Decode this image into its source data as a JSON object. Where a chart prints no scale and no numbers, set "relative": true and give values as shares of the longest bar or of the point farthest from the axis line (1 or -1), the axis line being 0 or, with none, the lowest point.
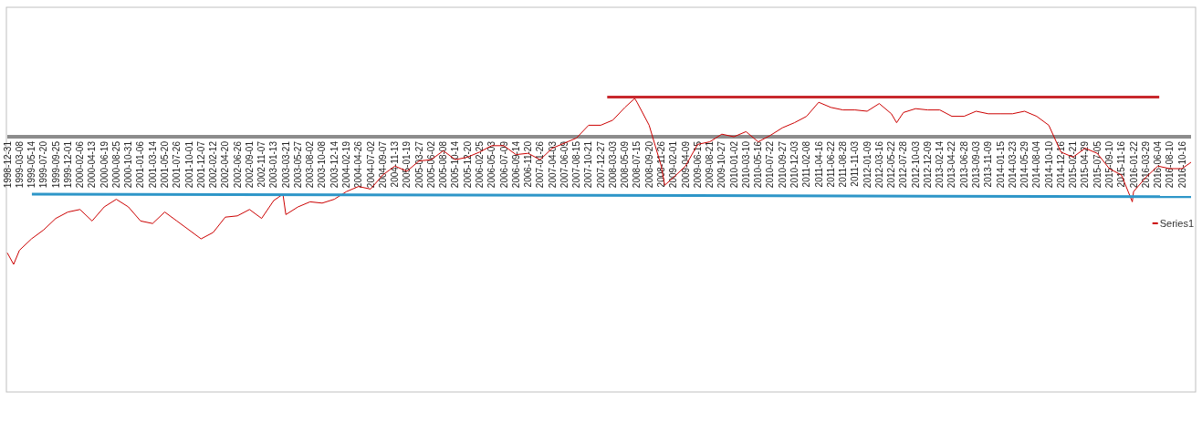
{
  "chart_data": {
    "type": "line",
    "relative": true,
    "legend": "right",
    "xlim": [
      "1998-12-31",
      "2016-12-05"
    ],
    "xticks": [
      "1998-12-31",
      "1999-03-08",
      "1999-05-14",
      "1999-07-20",
      "1999-09-25",
      "1999-12-01",
      "2000-02-06",
      "2000-04-13",
      "2000-06-19",
      "2000-08-25",
      "2000-10-31",
      "2001-01-06",
      "2001-03-14",
      "2001-05-20",
      "2001-07-26",
      "2001-10-01",
      "2001-12-07",
      "2002-02-12",
      "2002-04-20",
      "2002-06-26",
      "2002-09-01",
      "2002-11-07",
      "2003-01-13",
      "2003-03-21",
      "2003-05-27",
      "2003-08-02",
      "2003-10-08",
      "2003-12-14",
      "2004-02-19",
      "2004-04-26",
      "2004-07-02",
      "2004-09-07",
      "2004-11-13",
      "2005-01-19",
      "2005-03-27",
      "2005-06-02",
      "2005-08-08",
      "2005-10-14",
      "2005-12-20",
      "2006-02-25",
      "2006-05-03",
      "2006-07-09",
      "2006-09-14",
      "2006-11-20",
      "2007-01-26",
      "2007-04-03",
      "2007-06-09",
      "2007-08-15",
      "2007-10-21",
      "2007-12-27",
      "2008-03-03",
      "2008-05-09",
      "2008-07-15",
      "2008-09-20",
      "2008-11-26",
      "2009-02-01",
      "2009-04-09",
      "2009-06-15",
      "2009-08-21",
      "2009-10-27",
      "2010-01-02",
      "2010-03-10",
      "2010-05-16",
      "2010-07-22",
      "2010-09-27",
      "2010-12-03",
      "2011-02-08",
      "2011-04-16",
      "2011-06-22",
      "2011-08-28",
      "2011-11-03",
      "2012-01-09",
      "2012-03-16",
      "2012-05-22",
      "2012-07-28",
      "2012-10-03",
      "2012-12-09",
      "2013-02-14",
      "2013-04-22",
      "2013-06-28",
      "2013-09-03",
      "2013-11-09",
      "2014-01-15",
      "2014-03-23",
      "2014-05-29",
      "2014-08-04",
      "2014-10-10",
      "2014-12-16",
      "2015-02-21",
      "2015-04-29",
      "2015-07-05",
      "2015-09-10",
      "2015-11-16",
      "2016-01-22",
      "2016-03-29",
      "2016-06-04",
      "2016-08-10",
      "2016-10-16"
    ],
    "series": [
      {
        "name": "Series1",
        "color": "#cc0000",
        "x": [
          "1998-12-31",
          "1999-02-04",
          "1999-03-08",
          "1999-05-14",
          "1999-07-20",
          "1999-09-25",
          "1999-12-01",
          "2000-02-06",
          "2000-04-13",
          "2000-06-19",
          "2000-08-25",
          "2000-10-31",
          "2001-01-06",
          "2001-03-14",
          "2001-05-20",
          "2001-07-26",
          "2001-10-01",
          "2001-12-07",
          "2002-02-12",
          "2002-04-20",
          "2002-06-26",
          "2002-09-01",
          "2002-11-07",
          "2003-01-13",
          "2003-03-05",
          "2003-03-21",
          "2003-05-27",
          "2003-08-02",
          "2003-10-08",
          "2003-12-14",
          "2004-02-19",
          "2004-04-26",
          "2004-07-02",
          "2004-09-07",
          "2004-11-13",
          "2005-01-19",
          "2005-03-27",
          "2005-06-02",
          "2005-08-08",
          "2005-10-14",
          "2005-12-20",
          "2006-02-25",
          "2006-05-03",
          "2006-07-09",
          "2006-09-14",
          "2006-11-20",
          "2007-01-26",
          "2007-04-03",
          "2007-06-09",
          "2007-08-15",
          "2007-10-21",
          "2007-12-27",
          "2008-03-03",
          "2008-05-09",
          "2008-07-02",
          "2008-07-15",
          "2008-09-20",
          "2008-11-26",
          "2008-12-15",
          "2009-02-01",
          "2009-04-09",
          "2009-06-15",
          "2009-08-21",
          "2009-10-27",
          "2010-01-02",
          "2010-03-10",
          "2010-05-16",
          "2010-07-22",
          "2010-09-27",
          "2010-12-03",
          "2011-02-08",
          "2011-04-16",
          "2011-06-22",
          "2011-08-28",
          "2011-11-03",
          "2012-01-09",
          "2012-03-16",
          "2012-05-22",
          "2012-06-20",
          "2012-07-28",
          "2012-10-03",
          "2012-12-09",
          "2013-02-14",
          "2013-04-22",
          "2013-06-28",
          "2013-09-03",
          "2013-11-09",
          "2014-01-15",
          "2014-03-23",
          "2014-05-29",
          "2014-08-04",
          "2014-10-10",
          "2014-12-16",
          "2015-02-21",
          "2015-04-29",
          "2015-07-05",
          "2015-09-10",
          "2015-11-16",
          "2016-01-15",
          "2016-01-22",
          "2016-03-29",
          "2016-06-04",
          "2016-08-10",
          "2016-10-16",
          "2016-12-05"
        ],
        "values": [
          -0.91,
          -1.0,
          -0.89,
          -0.8,
          -0.73,
          -0.64,
          -0.59,
          -0.57,
          -0.66,
          -0.55,
          -0.49,
          -0.55,
          -0.66,
          -0.68,
          -0.59,
          -0.66,
          -0.73,
          -0.8,
          -0.75,
          -0.63,
          -0.62,
          -0.57,
          -0.64,
          -0.5,
          -0.45,
          -0.61,
          -0.55,
          -0.51,
          -0.52,
          -0.49,
          -0.43,
          -0.39,
          -0.41,
          -0.3,
          -0.23,
          -0.27,
          -0.19,
          -0.18,
          -0.11,
          -0.18,
          -0.16,
          -0.12,
          -0.07,
          -0.07,
          -0.14,
          -0.13,
          -0.18,
          -0.09,
          -0.05,
          -0.01,
          0.09,
          0.09,
          0.13,
          0.23,
          0.3,
          0.27,
          0.09,
          -0.23,
          -0.38,
          -0.32,
          -0.23,
          -0.06,
          -0.04,
          0.02,
          0,
          0.04,
          -0.04,
          0.01,
          0.07,
          0.11,
          0.16,
          0.27,
          0.23,
          0.21,
          0.21,
          0.2,
          0.26,
          0.18,
          0.11,
          0.19,
          0.22,
          0.21,
          0.21,
          0.16,
          0.16,
          0.2,
          0.18,
          0.18,
          0.18,
          0.2,
          0.16,
          0.09,
          -0.12,
          -0.16,
          -0.09,
          -0.13,
          -0.25,
          -0.3,
          -0.51,
          -0.43,
          -0.32,
          -0.23,
          -0.25,
          -0.25,
          -0.2
        ]
      },
      {
        "type": "line",
        "color": "#c8282d",
        "x": [
          "2008-02-01",
          "2016-06-12"
        ],
        "values": [
          0.31,
          0.31
        ]
      },
      {
        "type": "line",
        "color": "#2e96c8",
        "x": [
          "1999-05-16",
          "2016-12-05"
        ],
        "values": [
          -0.45,
          -0.47
        ]
      }
    ]
  }
}
